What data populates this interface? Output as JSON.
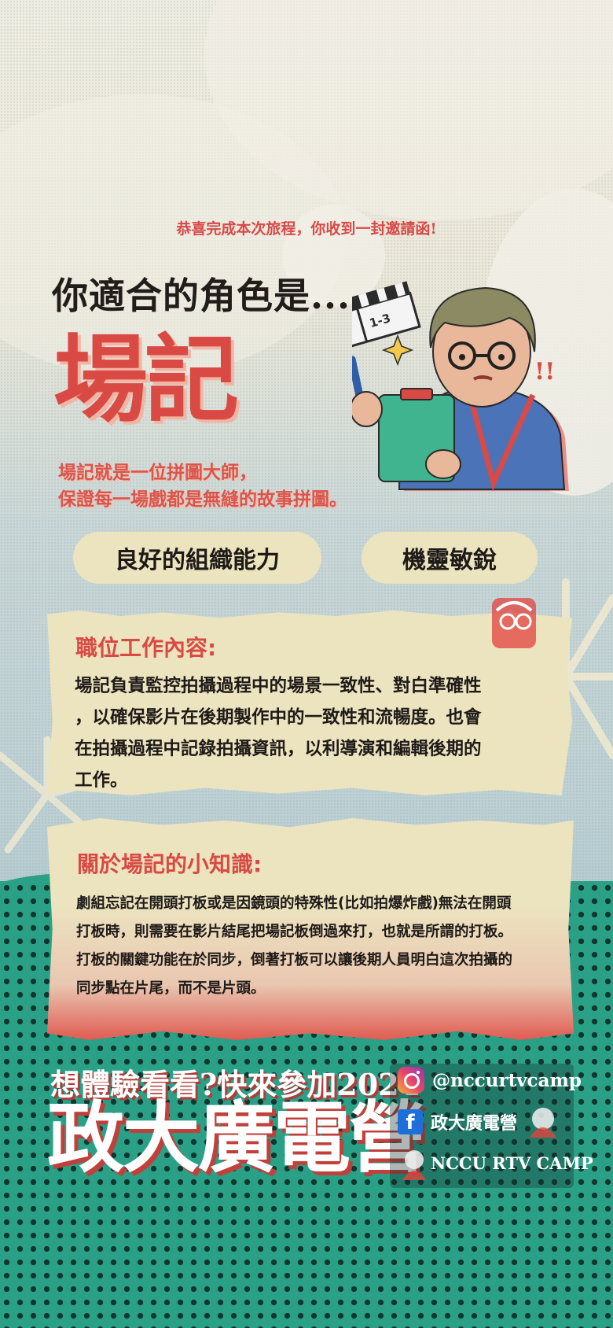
{
  "subtitle": "恭喜完成本次旅程，你收到一封邀請函!",
  "heading": "你適合的角色是...",
  "role": "場記",
  "role_description": [
    "場記就是一位拼圖大師，",
    "保證每一場戲都是無縫的故事拼圖。"
  ],
  "traits": [
    "良好的組織能力",
    "機靈敏銳"
  ],
  "clapper_text": "1-3",
  "job": {
    "title": "職位工作內容:",
    "lines": [
      "場記負責監控拍攝過程中的場景一致性、對白準確性",
      "，以確保影片在後期製作中的一致性和流暢度。也會",
      "在拍攝過程中記錄拍攝資訊，以利導演和編輯後期的",
      "工作。"
    ]
  },
  "trivia": {
    "title": "關於場記的小知識:",
    "lines": [
      "劇組忘記在開頭打板或是因鏡頭的特殊性(比如拍爆炸戲)無法在開頭",
      "打板時，則需要在影片結尾把場記板倒過來打，也就是所謂的打板。",
      "打板的關鍵功能在於同步，倒著打板可以讓後期人員明白這次拍攝的",
      "同步點在片尾，而不是片頭。"
    ]
  },
  "cta": {
    "line": "想體驗看看?快來參加2024",
    "big": "政大廣電營"
  },
  "social": {
    "instagram": "@nccurtvcamp",
    "facebook": "政大廣電營",
    "name": "NCCU RTV CAMP"
  },
  "colors": {
    "accent_red": "#d94a44",
    "green": "#2aa086",
    "card": "#ece3bf"
  },
  "icons": [
    "instagram-icon",
    "facebook-icon",
    "clapperboard-icon",
    "sparkle-icon",
    "mascot-icon"
  ]
}
